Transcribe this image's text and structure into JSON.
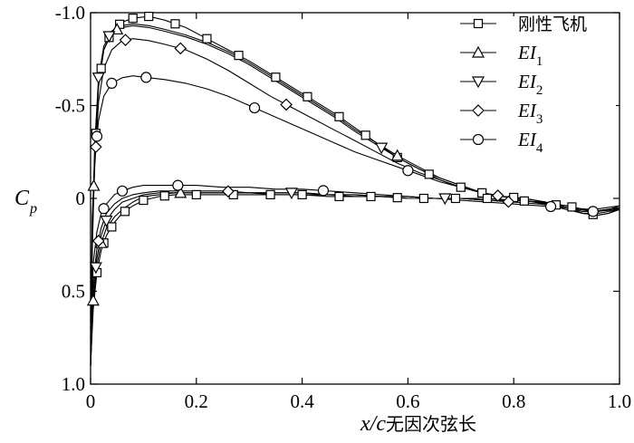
{
  "chart_data": {
    "type": "line",
    "title": "",
    "xlabel": {
      "italic": "x/c",
      "plain": "无因次弦长"
    },
    "ylabel": {
      "main": "C",
      "sub": "p"
    },
    "xlim": [
      0,
      1.0
    ],
    "ylim": [
      -1.0,
      1.0
    ],
    "y_inverted": true,
    "grid": false,
    "legend_position": "top-right",
    "x_ticks": [
      {
        "value": 0,
        "label": "0"
      },
      {
        "value": 0.2,
        "label": "0.2"
      },
      {
        "value": 0.4,
        "label": "0.4"
      },
      {
        "value": 0.6,
        "label": "0.6"
      },
      {
        "value": 0.8,
        "label": "0.8"
      },
      {
        "value": 1.0,
        "label": "1.0"
      }
    ],
    "y_ticks": [
      {
        "value": -1.0,
        "label": "-1.0"
      },
      {
        "value": -0.5,
        "label": "-0.5"
      },
      {
        "value": 0,
        "label": "0"
      },
      {
        "value": 0.5,
        "label": "0.5"
      },
      {
        "value": 1.0,
        "label": "1.0"
      }
    ],
    "series": [
      {
        "name": "刚性飞机",
        "name_main": "刚性飞机",
        "name_sub": "",
        "marker": "square",
        "upper": {
          "x": [
            0.0,
            0.003,
            0.008,
            0.015,
            0.025,
            0.04,
            0.06,
            0.08,
            0.11,
            0.14,
            0.18,
            0.22,
            0.26,
            0.3,
            0.34,
            0.38,
            0.42,
            0.46,
            0.5,
            0.54,
            0.58,
            0.62,
            0.66,
            0.7,
            0.74,
            0.78,
            0.82,
            0.86,
            0.9,
            0.93,
            0.96,
            0.98,
            1.0
          ],
          "y": [
            0.9,
            0.3,
            -0.25,
            -0.6,
            -0.8,
            -0.9,
            -0.95,
            -0.97,
            -0.98,
            -0.96,
            -0.92,
            -0.86,
            -0.8,
            -0.74,
            -0.67,
            -0.6,
            -0.53,
            -0.46,
            -0.38,
            -0.3,
            -0.22,
            -0.16,
            -0.1,
            -0.06,
            -0.03,
            -0.01,
            0.0,
            0.02,
            0.05,
            0.08,
            0.09,
            0.08,
            0.06
          ]
        },
        "lower": {
          "x": [
            0.0,
            0.005,
            0.012,
            0.02,
            0.03,
            0.045,
            0.06,
            0.08,
            0.1,
            0.13,
            0.16,
            0.2,
            0.25,
            0.3,
            0.35,
            0.4,
            0.45,
            0.5,
            0.55,
            0.6,
            0.65,
            0.7,
            0.75,
            0.8,
            0.85,
            0.9,
            0.95,
            1.0
          ],
          "y": [
            0.9,
            0.6,
            0.4,
            0.28,
            0.2,
            0.13,
            0.08,
            0.04,
            0.01,
            -0.01,
            -0.02,
            -0.02,
            -0.02,
            -0.02,
            -0.02,
            -0.02,
            -0.01,
            -0.01,
            -0.01,
            0.0,
            0.0,
            0.0,
            0.0,
            0.01,
            0.02,
            0.04,
            0.07,
            0.06
          ]
        },
        "markers_upper": [
          0.01,
          0.02,
          0.035,
          0.055,
          0.08,
          0.11,
          0.16,
          0.22,
          0.28,
          0.35,
          0.41,
          0.47,
          0.52,
          0.58,
          0.64,
          0.7,
          0.74,
          0.8,
          0.88,
          0.95
        ],
        "markers_lower": [
          0.012,
          0.025,
          0.04,
          0.065,
          0.1,
          0.14,
          0.2,
          0.27,
          0.34,
          0.4,
          0.47,
          0.53,
          0.58,
          0.63,
          0.69,
          0.75,
          0.82,
          0.91
        ]
      },
      {
        "name": "EI1",
        "name_main": "EI",
        "name_sub": "1",
        "marker": "triangle-up",
        "upper": {
          "x": [
            0.0,
            0.003,
            0.008,
            0.015,
            0.025,
            0.04,
            0.06,
            0.08,
            0.11,
            0.14,
            0.18,
            0.22,
            0.26,
            0.3,
            0.34,
            0.38,
            0.42,
            0.46,
            0.5,
            0.54,
            0.58,
            0.62,
            0.66,
            0.7,
            0.74,
            0.78,
            0.82,
            0.86,
            0.9,
            0.93,
            0.96,
            0.98,
            1.0
          ],
          "y": [
            0.9,
            0.25,
            -0.28,
            -0.62,
            -0.8,
            -0.89,
            -0.93,
            -0.94,
            -0.93,
            -0.91,
            -0.88,
            -0.84,
            -0.79,
            -0.73,
            -0.66,
            -0.59,
            -0.52,
            -0.45,
            -0.37,
            -0.3,
            -0.23,
            -0.17,
            -0.11,
            -0.07,
            -0.03,
            -0.01,
            0.0,
            0.02,
            0.05,
            0.08,
            0.09,
            0.08,
            0.05
          ]
        },
        "lower": {
          "x": [
            0.0,
            0.005,
            0.012,
            0.02,
            0.03,
            0.045,
            0.06,
            0.08,
            0.1,
            0.13,
            0.16,
            0.2,
            0.25,
            0.3,
            0.35,
            0.4,
            0.45,
            0.5,
            0.55,
            0.6,
            0.65,
            0.7,
            0.75,
            0.8,
            0.85,
            0.9,
            0.95,
            1.0
          ],
          "y": [
            0.9,
            0.55,
            0.36,
            0.24,
            0.16,
            0.1,
            0.06,
            0.02,
            -0.01,
            -0.02,
            -0.03,
            -0.03,
            -0.03,
            -0.03,
            -0.02,
            -0.02,
            -0.02,
            -0.01,
            -0.01,
            0.0,
            0.0,
            0.0,
            0.01,
            0.01,
            0.02,
            0.04,
            0.07,
            0.05
          ]
        },
        "markers_upper": [
          0.006,
          0.05,
          0.58
        ],
        "markers_lower": [
          0.005,
          0.02,
          0.17
        ]
      },
      {
        "name": "EI2",
        "name_main": "EI",
        "name_sub": "2",
        "marker": "triangle-down",
        "upper": {
          "x": [
            0.0,
            0.003,
            0.008,
            0.015,
            0.025,
            0.04,
            0.06,
            0.08,
            0.11,
            0.14,
            0.18,
            0.22,
            0.26,
            0.3,
            0.34,
            0.38,
            0.42,
            0.46,
            0.5,
            0.54,
            0.58,
            0.62,
            0.66,
            0.7,
            0.74,
            0.78,
            0.82,
            0.86,
            0.9,
            0.93,
            0.96,
            0.98,
            1.0
          ],
          "y": [
            0.9,
            0.2,
            -0.3,
            -0.65,
            -0.82,
            -0.9,
            -0.92,
            -0.93,
            -0.92,
            -0.9,
            -0.87,
            -0.83,
            -0.78,
            -0.72,
            -0.65,
            -0.58,
            -0.51,
            -0.44,
            -0.36,
            -0.29,
            -0.22,
            -0.16,
            -0.11,
            -0.07,
            -0.03,
            -0.01,
            0.0,
            0.02,
            0.05,
            0.08,
            0.09,
            0.08,
            0.05
          ]
        },
        "lower": {
          "x": [
            0.0,
            0.005,
            0.012,
            0.02,
            0.03,
            0.045,
            0.06,
            0.08,
            0.1,
            0.13,
            0.16,
            0.2,
            0.25,
            0.3,
            0.35,
            0.4,
            0.45,
            0.5,
            0.55,
            0.6,
            0.65,
            0.7,
            0.75,
            0.8,
            0.85,
            0.9,
            0.95,
            1.0
          ],
          "y": [
            0.9,
            0.5,
            0.32,
            0.2,
            0.12,
            0.06,
            0.02,
            0.0,
            -0.02,
            -0.03,
            -0.03,
            -0.03,
            -0.03,
            -0.03,
            -0.03,
            -0.03,
            -0.02,
            -0.02,
            -0.01,
            -0.01,
            0.0,
            0.0,
            0.01,
            0.01,
            0.02,
            0.04,
            0.07,
            0.05
          ]
        },
        "markers_upper": [
          0.015,
          0.035,
          0.55
        ],
        "markers_lower": [
          0.01,
          0.03,
          0.38,
          0.67
        ]
      },
      {
        "name": "EI3",
        "name_main": "EI",
        "name_sub": "3",
        "marker": "diamond",
        "upper": {
          "x": [
            0.0,
            0.003,
            0.008,
            0.015,
            0.025,
            0.04,
            0.06,
            0.08,
            0.11,
            0.14,
            0.18,
            0.22,
            0.26,
            0.3,
            0.34,
            0.38,
            0.42,
            0.46,
            0.5,
            0.54,
            0.58,
            0.62,
            0.66,
            0.7,
            0.74,
            0.78,
            0.82,
            0.86,
            0.9,
            0.93,
            0.96,
            0.98,
            1.0
          ],
          "y": [
            0.9,
            0.2,
            -0.18,
            -0.52,
            -0.7,
            -0.8,
            -0.85,
            -0.86,
            -0.85,
            -0.83,
            -0.8,
            -0.75,
            -0.69,
            -0.62,
            -0.55,
            -0.49,
            -0.43,
            -0.37,
            -0.31,
            -0.25,
            -0.19,
            -0.14,
            -0.1,
            -0.06,
            -0.03,
            -0.01,
            0.01,
            0.03,
            0.06,
            0.08,
            0.08,
            0.07,
            0.05
          ]
        },
        "lower": {
          "x": [
            0.0,
            0.005,
            0.012,
            0.02,
            0.03,
            0.045,
            0.06,
            0.08,
            0.1,
            0.13,
            0.16,
            0.2,
            0.25,
            0.3,
            0.35,
            0.4,
            0.45,
            0.5,
            0.55,
            0.6,
            0.65,
            0.7,
            0.75,
            0.8,
            0.85,
            0.9,
            0.95,
            1.0
          ],
          "y": [
            0.9,
            0.45,
            0.27,
            0.16,
            0.08,
            0.03,
            0.0,
            -0.02,
            -0.03,
            -0.04,
            -0.04,
            -0.04,
            -0.04,
            -0.03,
            -0.03,
            -0.03,
            -0.02,
            -0.02,
            -0.01,
            -0.01,
            0.0,
            0.0,
            0.01,
            0.02,
            0.03,
            0.05,
            0.07,
            0.05
          ]
        },
        "markers_upper": [
          0.01,
          0.066,
          0.17,
          0.37,
          0.77
        ],
        "markers_lower": [
          0.015,
          0.26,
          0.79
        ]
      },
      {
        "name": "EI4",
        "name_main": "EI",
        "name_sub": "4",
        "marker": "circle",
        "upper": {
          "x": [
            0.0,
            0.003,
            0.008,
            0.015,
            0.025,
            0.04,
            0.06,
            0.08,
            0.11,
            0.14,
            0.18,
            0.22,
            0.26,
            0.3,
            0.34,
            0.38,
            0.42,
            0.46,
            0.5,
            0.54,
            0.58,
            0.62,
            0.66,
            0.7,
            0.74,
            0.78,
            0.82,
            0.86,
            0.9,
            0.93,
            0.96,
            0.98,
            1.0
          ],
          "y": [
            0.75,
            0.1,
            -0.22,
            -0.42,
            -0.55,
            -0.62,
            -0.65,
            -0.66,
            -0.65,
            -0.64,
            -0.62,
            -0.59,
            -0.55,
            -0.5,
            -0.45,
            -0.4,
            -0.35,
            -0.3,
            -0.25,
            -0.21,
            -0.17,
            -0.13,
            -0.09,
            -0.06,
            -0.03,
            -0.01,
            0.01,
            0.03,
            0.05,
            0.07,
            0.07,
            0.06,
            0.04
          ]
        },
        "lower": {
          "x": [
            0.0,
            0.005,
            0.012,
            0.02,
            0.03,
            0.045,
            0.06,
            0.08,
            0.1,
            0.13,
            0.16,
            0.2,
            0.25,
            0.3,
            0.35,
            0.4,
            0.45,
            0.5,
            0.55,
            0.6,
            0.65,
            0.7,
            0.75,
            0.8,
            0.85,
            0.9,
            0.95,
            1.0
          ],
          "y": [
            0.75,
            0.35,
            0.18,
            0.08,
            0.03,
            -0.02,
            -0.04,
            -0.06,
            -0.07,
            -0.07,
            -0.07,
            -0.07,
            -0.06,
            -0.06,
            -0.05,
            -0.05,
            -0.04,
            -0.03,
            -0.02,
            -0.01,
            0.0,
            0.01,
            0.02,
            0.03,
            0.04,
            0.05,
            0.06,
            0.04
          ]
        },
        "markers_upper": [
          0.012,
          0.04,
          0.105,
          0.31,
          0.6,
          0.95
        ],
        "markers_lower": [
          0.025,
          0.06,
          0.165,
          0.44,
          0.87
        ]
      }
    ]
  }
}
